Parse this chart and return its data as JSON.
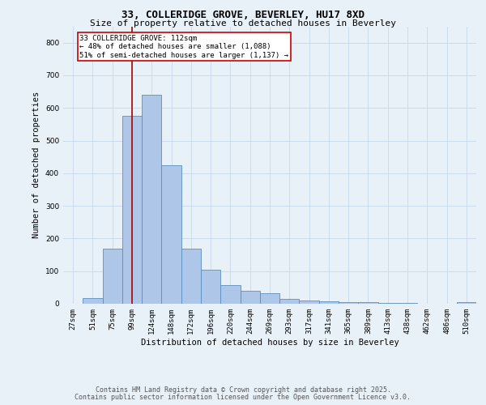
{
  "title": "33, COLLERIDGE GROVE, BEVERLEY, HU17 8XD",
  "subtitle": "Size of property relative to detached houses in Beverley",
  "xlabel": "Distribution of detached houses by size in Beverley",
  "ylabel": "Number of detached properties",
  "bin_labels": [
    "27sqm",
    "51sqm",
    "75sqm",
    "99sqm",
    "124sqm",
    "148sqm",
    "172sqm",
    "196sqm",
    "220sqm",
    "244sqm",
    "269sqm",
    "293sqm",
    "317sqm",
    "341sqm",
    "365sqm",
    "389sqm",
    "413sqm",
    "438sqm",
    "462sqm",
    "486sqm",
    "510sqm"
  ],
  "bar_heights": [
    0,
    18,
    170,
    575,
    640,
    425,
    170,
    105,
    57,
    40,
    32,
    15,
    10,
    8,
    6,
    4,
    3,
    2,
    1,
    1,
    5
  ],
  "bar_color": "#aec6e8",
  "bar_edge_color": "#5a8fc0",
  "red_line_color": "#aa0000",
  "red_line_x": 3.52,
  "marker_label": "33 COLLERIDGE GROVE: 112sqm\n← 48% of detached houses are smaller (1,088)\n51% of semi-detached houses are larger (1,137) →",
  "annotation_box_color": "#ffffff",
  "annotation_box_edge_color": "#cc0000",
  "ylim": [
    0,
    850
  ],
  "yticks": [
    0,
    100,
    200,
    300,
    400,
    500,
    600,
    700,
    800
  ],
  "grid_color": "#c8d8ea",
  "bg_color": "#e8f0f8",
  "footnote1": "Contains HM Land Registry data © Crown copyright and database right 2025.",
  "footnote2": "Contains public sector information licensed under the Open Government Licence v3.0.",
  "title_fontsize": 9,
  "subtitle_fontsize": 8,
  "axis_label_fontsize": 7.5,
  "tick_fontsize": 6.5,
  "annotation_fontsize": 6.5,
  "footnote_fontsize": 6
}
